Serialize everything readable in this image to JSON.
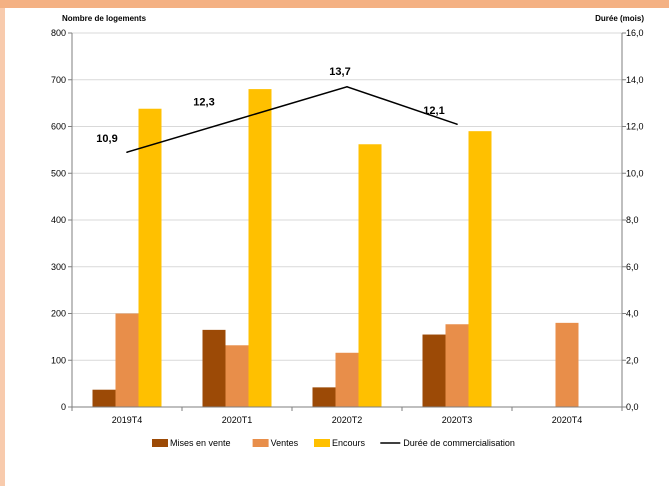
{
  "chart_data": {
    "type": "bar",
    "categories": [
      "2019T4",
      "2020T1",
      "2020T2",
      "2020T3",
      "2020T4"
    ],
    "ylabel": "Nombre de logements",
    "y2label": "Durée (mois)",
    "ylim": [
      0,
      800
    ],
    "y2lim": [
      0,
      16
    ],
    "yticks": [
      "0",
      "100",
      "200",
      "300",
      "400",
      "500",
      "600",
      "700",
      "800"
    ],
    "y2ticks": [
      "0,0",
      "2,0",
      "4,0",
      "6,0",
      "8,0",
      "10,0",
      "12,0",
      "14,0",
      "16,0"
    ],
    "grid": true,
    "legend_position": "bottom",
    "series": [
      {
        "name": "Mises en vente",
        "type": "bar",
        "color": "#9c4a06",
        "values": [
          37,
          165,
          42,
          155,
          null
        ]
      },
      {
        "name": "Ventes",
        "type": "bar",
        "color": "#e88e4a",
        "values": [
          200,
          132,
          116,
          177,
          180
        ]
      },
      {
        "name": "Encours",
        "type": "bar",
        "color": "#ffc000",
        "values": [
          638,
          680,
          562,
          590,
          null
        ]
      },
      {
        "name": "Durée de commercialisation",
        "type": "line",
        "axis": "right",
        "color": "#000000",
        "values": [
          10.9,
          12.3,
          13.7,
          12.1,
          null
        ],
        "labels": [
          "10,9",
          "12,3",
          "13,7",
          "12,1",
          ""
        ]
      }
    ]
  }
}
